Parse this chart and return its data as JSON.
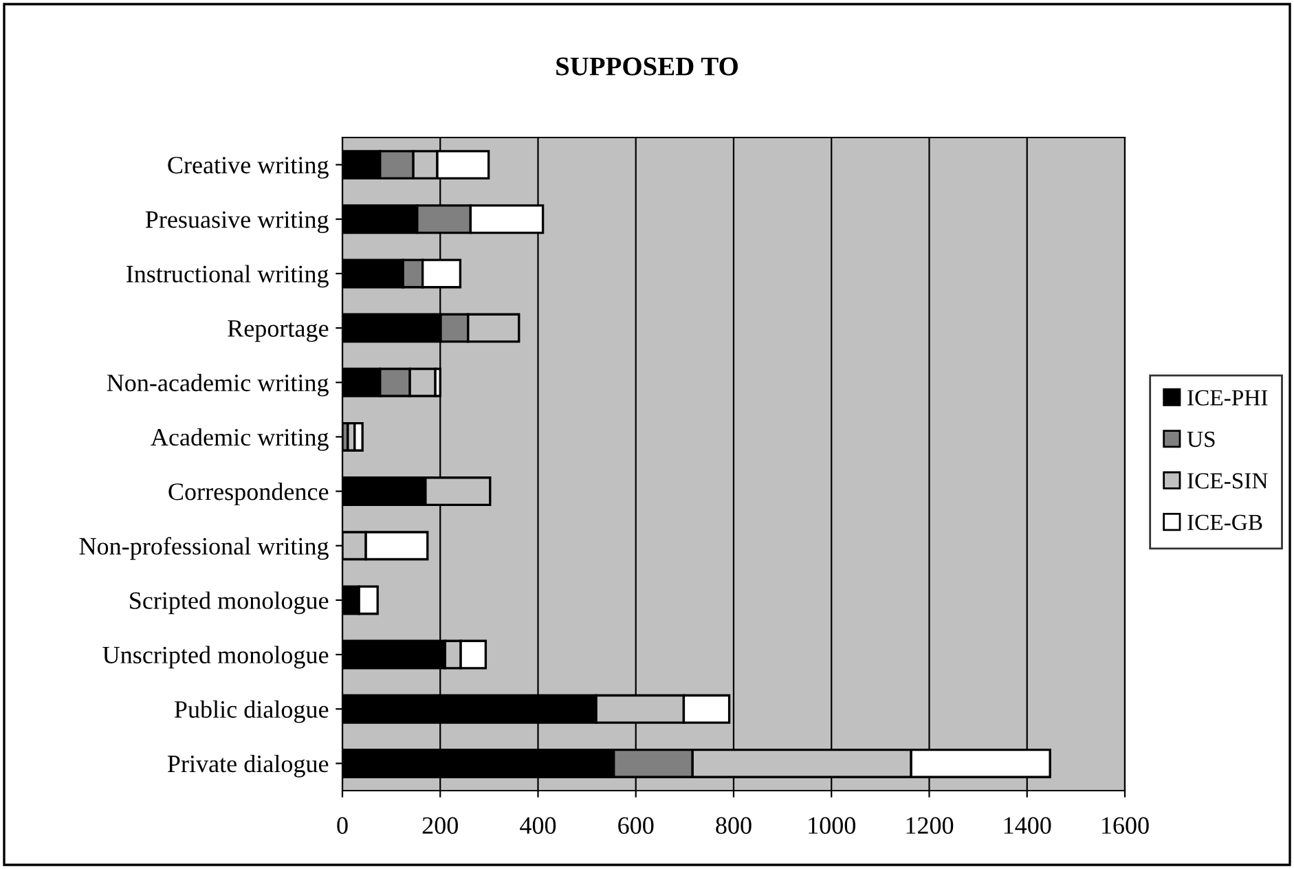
{
  "chart_data": {
    "type": "bar",
    "orientation": "horizontal",
    "stacked": true,
    "title": "SUPPOSED TO",
    "categories": [
      "Creative writing",
      "Presuasive writing",
      "Instructional writing",
      "Reportage",
      "Non-academic writing",
      "Academic writing",
      "Correspondence",
      "Non-professional writing",
      "Scripted monologue",
      "Unscripted monologue",
      "Public dialogue",
      "Private dialogue"
    ],
    "series": [
      {
        "name": "ICE-PHI",
        "color": "#000000",
        "values": [
          77,
          153,
          124,
          201,
          77,
          null,
          170,
          null,
          34,
          210,
          519,
          555
        ]
      },
      {
        "name": "US",
        "color": "#808080",
        "values": [
          68,
          109,
          40,
          56,
          61,
          11,
          null,
          null,
          null,
          null,
          null,
          161
        ]
      },
      {
        "name": "ICE-SIN",
        "color": "#c0c0c0",
        "values": [
          49,
          null,
          null,
          104,
          52,
          14,
          132,
          48,
          null,
          32,
          179,
          447
        ]
      },
      {
        "name": "ICE-GB",
        "color": "#ffffff",
        "values": [
          105,
          148,
          77,
          null,
          10,
          16,
          null,
          126,
          38,
          51,
          93,
          284
        ]
      }
    ],
    "xlim": [
      0,
      1600
    ],
    "xticks": [
      0,
      200,
      400,
      600,
      800,
      1000,
      1200,
      1400,
      1600
    ],
    "grid": "x",
    "legend": "right"
  }
}
